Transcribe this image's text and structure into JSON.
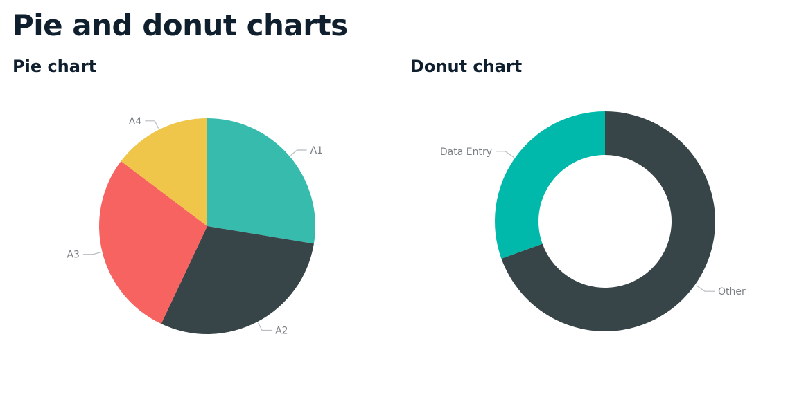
{
  "page": {
    "title": "Pie and donut charts"
  },
  "chart_data": [
    {
      "type": "pie",
      "title": "Pie chart",
      "categories": [
        "A1",
        "A2",
        "A3",
        "A4"
      ],
      "values": [
        27.6,
        29.4,
        28.3,
        14.7
      ],
      "colors": [
        "#37bbad",
        "#384548",
        "#f66361",
        "#efc64a"
      ]
    },
    {
      "type": "donut",
      "title": "Donut chart",
      "categories": [
        "Other",
        "Data Entry"
      ],
      "values": [
        69.5,
        30.5
      ],
      "colors": [
        "#384548",
        "#00b9aa"
      ]
    }
  ]
}
